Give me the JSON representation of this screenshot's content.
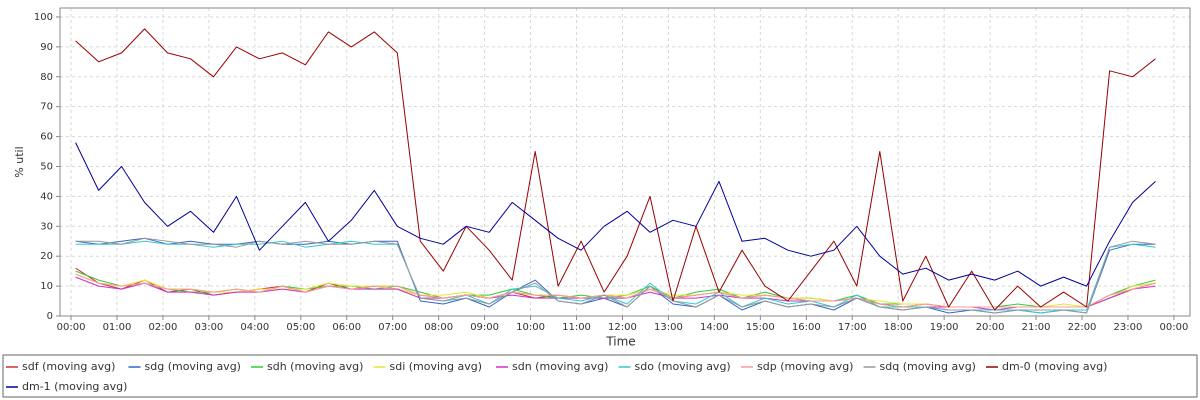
{
  "chart_data": {
    "type": "line",
    "x_label": "Time",
    "y_label": "% util",
    "grid": true,
    "legend": "bottom",
    "xlim": [
      -0.24,
      24.35
    ],
    "ylim": [
      0,
      103
    ],
    "xticks": [
      {
        "value": 0,
        "label": "00:00"
      },
      {
        "value": 1,
        "label": "01:00"
      },
      {
        "value": 2,
        "label": "02:00"
      },
      {
        "value": 3,
        "label": "03:00"
      },
      {
        "value": 4,
        "label": "04:00"
      },
      {
        "value": 5,
        "label": "05:00"
      },
      {
        "value": 6,
        "label": "06:00"
      },
      {
        "value": 7,
        "label": "07:00"
      },
      {
        "value": 8,
        "label": "08:00"
      },
      {
        "value": 9,
        "label": "09:00"
      },
      {
        "value": 10,
        "label": "10:00"
      },
      {
        "value": 11,
        "label": "11:00"
      },
      {
        "value": 12,
        "label": "12:00"
      },
      {
        "value": 13,
        "label": "13:00"
      },
      {
        "value": 14,
        "label": "14:00"
      },
      {
        "value": 15,
        "label": "15:00"
      },
      {
        "value": 16,
        "label": "16:00"
      },
      {
        "value": 17,
        "label": "17:00"
      },
      {
        "value": 18,
        "label": "18:00"
      },
      {
        "value": 19,
        "label": "19:00"
      },
      {
        "value": 20,
        "label": "20:00"
      },
      {
        "value": 21,
        "label": "21:00"
      },
      {
        "value": 22,
        "label": "22:00"
      },
      {
        "value": 23,
        "label": "23:00"
      },
      {
        "value": 24,
        "label": "00:00"
      }
    ],
    "yticks": [
      0,
      10,
      20,
      30,
      40,
      50,
      60,
      70,
      80,
      90,
      100
    ],
    "x": [
      0.1,
      0.6,
      1.1,
      1.6,
      2.1,
      2.6,
      3.1,
      3.6,
      4.1,
      4.6,
      5.1,
      5.6,
      6.1,
      6.6,
      7.1,
      7.6,
      8.1,
      8.6,
      9.1,
      9.6,
      10.1,
      10.6,
      11.1,
      11.6,
      12.1,
      12.6,
      13.1,
      13.6,
      14.1,
      14.6,
      15.1,
      15.6,
      16.1,
      16.6,
      17.1,
      17.6,
      18.1,
      18.6,
      19.1,
      19.6,
      20.1,
      20.6,
      21.1,
      21.6,
      22.1,
      22.6,
      23.1,
      23.6
    ],
    "series": [
      {
        "name": "sdf (moving avg)",
        "color": "#cc3333",
        "values": [
          16,
          11,
          9,
          12,
          8,
          9,
          7,
          8,
          9,
          10,
          8,
          11,
          9,
          10,
          9,
          7,
          6,
          7,
          6,
          8,
          6,
          7,
          6,
          7,
          6,
          9,
          6,
          7,
          8,
          6,
          7,
          6,
          5,
          5,
          6,
          4,
          3,
          4,
          3,
          3,
          3,
          3,
          3,
          3,
          3,
          6,
          9,
          11
        ]
      },
      {
        "name": "sdg (moving avg)",
        "color": "#3366cc",
        "values": [
          25,
          24,
          25,
          26,
          24,
          25,
          24,
          24,
          25,
          24,
          24,
          25,
          24,
          25,
          25,
          5,
          4,
          6,
          3,
          8,
          12,
          5,
          4,
          6,
          3,
          10,
          4,
          3,
          7,
          2,
          5,
          3,
          4,
          2,
          6,
          3,
          2,
          3,
          1,
          2,
          1,
          2,
          1,
          2,
          1,
          22,
          24,
          24
        ]
      },
      {
        "name": "sdh (moving avg)",
        "color": "#33cc33",
        "values": [
          15,
          12,
          10,
          11,
          9,
          8,
          8,
          9,
          8,
          10,
          9,
          10,
          10,
          9,
          10,
          8,
          6,
          7,
          7,
          9,
          7,
          6,
          7,
          6,
          7,
          10,
          6,
          8,
          9,
          6,
          8,
          6,
          6,
          5,
          7,
          4,
          4,
          4,
          3,
          3,
          3,
          4,
          3,
          3,
          3,
          7,
          10,
          12
        ]
      },
      {
        "name": "sdi (moving avg)",
        "color": "#e6e633",
        "values": [
          14,
          11,
          10,
          12,
          9,
          9,
          8,
          8,
          9,
          9,
          9,
          11,
          10,
          10,
          9,
          7,
          7,
          8,
          6,
          8,
          7,
          7,
          6,
          7,
          7,
          9,
          7,
          7,
          8,
          7,
          7,
          6,
          6,
          5,
          6,
          5,
          4,
          4,
          3,
          3,
          3,
          3,
          3,
          4,
          3,
          6,
          10,
          11
        ]
      },
      {
        "name": "sdn (moving avg)",
        "color": "#cc33cc",
        "values": [
          13,
          10,
          9,
          11,
          8,
          8,
          7,
          8,
          8,
          9,
          8,
          10,
          9,
          9,
          9,
          6,
          6,
          7,
          6,
          7,
          6,
          6,
          6,
          6,
          6,
          8,
          6,
          6,
          7,
          6,
          6,
          5,
          5,
          5,
          6,
          4,
          3,
          3,
          3,
          3,
          2,
          3,
          3,
          3,
          3,
          6,
          9,
          10
        ]
      },
      {
        "name": "sdo (moving avg)",
        "color": "#33cccc",
        "values": [
          24,
          24,
          24,
          25,
          24,
          24,
          23,
          24,
          24,
          25,
          23,
          24,
          25,
          24,
          24,
          6,
          5,
          7,
          4,
          9,
          10,
          6,
          5,
          7,
          4,
          11,
          5,
          4,
          8,
          3,
          6,
          4,
          5,
          3,
          7,
          3,
          3,
          3,
          2,
          2,
          2,
          2,
          1,
          2,
          2,
          23,
          24,
          23
        ]
      },
      {
        "name": "sdp (moving avg)",
        "color": "#ff9999",
        "values": [
          14,
          11,
          10,
          11,
          9,
          9,
          8,
          9,
          8,
          10,
          8,
          10,
          9,
          10,
          10,
          7,
          6,
          7,
          6,
          8,
          7,
          7,
          6,
          7,
          6,
          9,
          6,
          7,
          8,
          6,
          7,
          6,
          5,
          5,
          6,
          4,
          3,
          4,
          3,
          3,
          3,
          3,
          3,
          3,
          3,
          7,
          9,
          11
        ]
      },
      {
        "name": "sdq (moving avg)",
        "color": "#999999",
        "values": [
          25,
          25,
          24,
          26,
          25,
          24,
          24,
          23,
          25,
          24,
          25,
          24,
          24,
          25,
          24,
          6,
          5,
          6,
          4,
          8,
          11,
          5,
          4,
          7,
          3,
          10,
          5,
          3,
          7,
          3,
          5,
          3,
          4,
          3,
          6,
          3,
          2,
          3,
          2,
          2,
          1,
          2,
          2,
          2,
          1,
          23,
          25,
          24
        ]
      },
      {
        "name": "dm-0 (moving avg)",
        "color": "#990000",
        "values": [
          92,
          85,
          88,
          96,
          88,
          86,
          80,
          90,
          86,
          88,
          84,
          95,
          90,
          95,
          88,
          25,
          15,
          30,
          22,
          12,
          55,
          10,
          25,
          8,
          20,
          40,
          5,
          30,
          8,
          22,
          10,
          5,
          15,
          25,
          10,
          55,
          5,
          20,
          3,
          15,
          2,
          10,
          3,
          8,
          3,
          82,
          80,
          86
        ]
      },
      {
        "name": "dm-1 (moving avg)",
        "color": "#000099",
        "values": [
          58,
          42,
          50,
          38,
          30,
          35,
          28,
          40,
          22,
          30,
          38,
          25,
          32,
          42,
          30,
          26,
          24,
          30,
          28,
          38,
          32,
          26,
          22,
          30,
          35,
          28,
          32,
          30,
          45,
          25,
          26,
          22,
          20,
          22,
          30,
          20,
          14,
          16,
          12,
          14,
          12,
          15,
          10,
          13,
          10,
          25,
          38,
          45
        ]
      }
    ]
  }
}
